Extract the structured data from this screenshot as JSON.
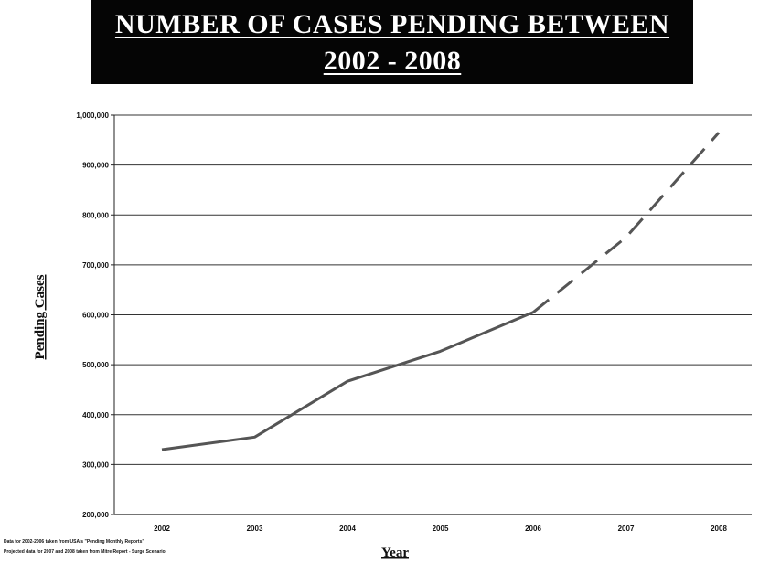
{
  "title": {
    "line1": "NUMBER OF CASES PENDING BETWEEN",
    "line2": "2002 - 2008"
  },
  "footnotes": [
    "Data for 2002-2006 taken from USA's \"Pending Monthly Reports\"",
    "Projected data for 2007 and 2008 taken from Mitre Report - Surge Scenario"
  ],
  "chart_data": {
    "type": "line",
    "title": "NUMBER OF CASES PENDING BETWEEN 2002 - 2008",
    "xlabel": "Year",
    "ylabel": "Pending Cases",
    "categories": [
      "2002",
      "2003",
      "2004",
      "2005",
      "2006",
      "2007",
      "2008"
    ],
    "ylim": [
      200000,
      1000000
    ],
    "yticks": [
      200000,
      300000,
      400000,
      500000,
      600000,
      700000,
      800000,
      900000,
      1000000
    ],
    "ytick_labels": [
      "200,000",
      "300,000",
      "400,000",
      "500,000",
      "600,000",
      "700,000",
      "800,000",
      "900,000",
      "1,000,000"
    ],
    "grid": "horizontal",
    "series": [
      {
        "style": "solid",
        "x": [
          "2002",
          "2003",
          "2004",
          "2005",
          "2006"
        ],
        "values": [
          330000,
          355000,
          467000,
          527000,
          605000
        ]
      },
      {
        "style": "dashed",
        "x": [
          "2006",
          "2007",
          "2008"
        ],
        "values": [
          605000,
          755000,
          965000
        ]
      }
    ],
    "colors": {
      "line": "#555555",
      "grid": "#333333",
      "axis": "#222222"
    }
  }
}
